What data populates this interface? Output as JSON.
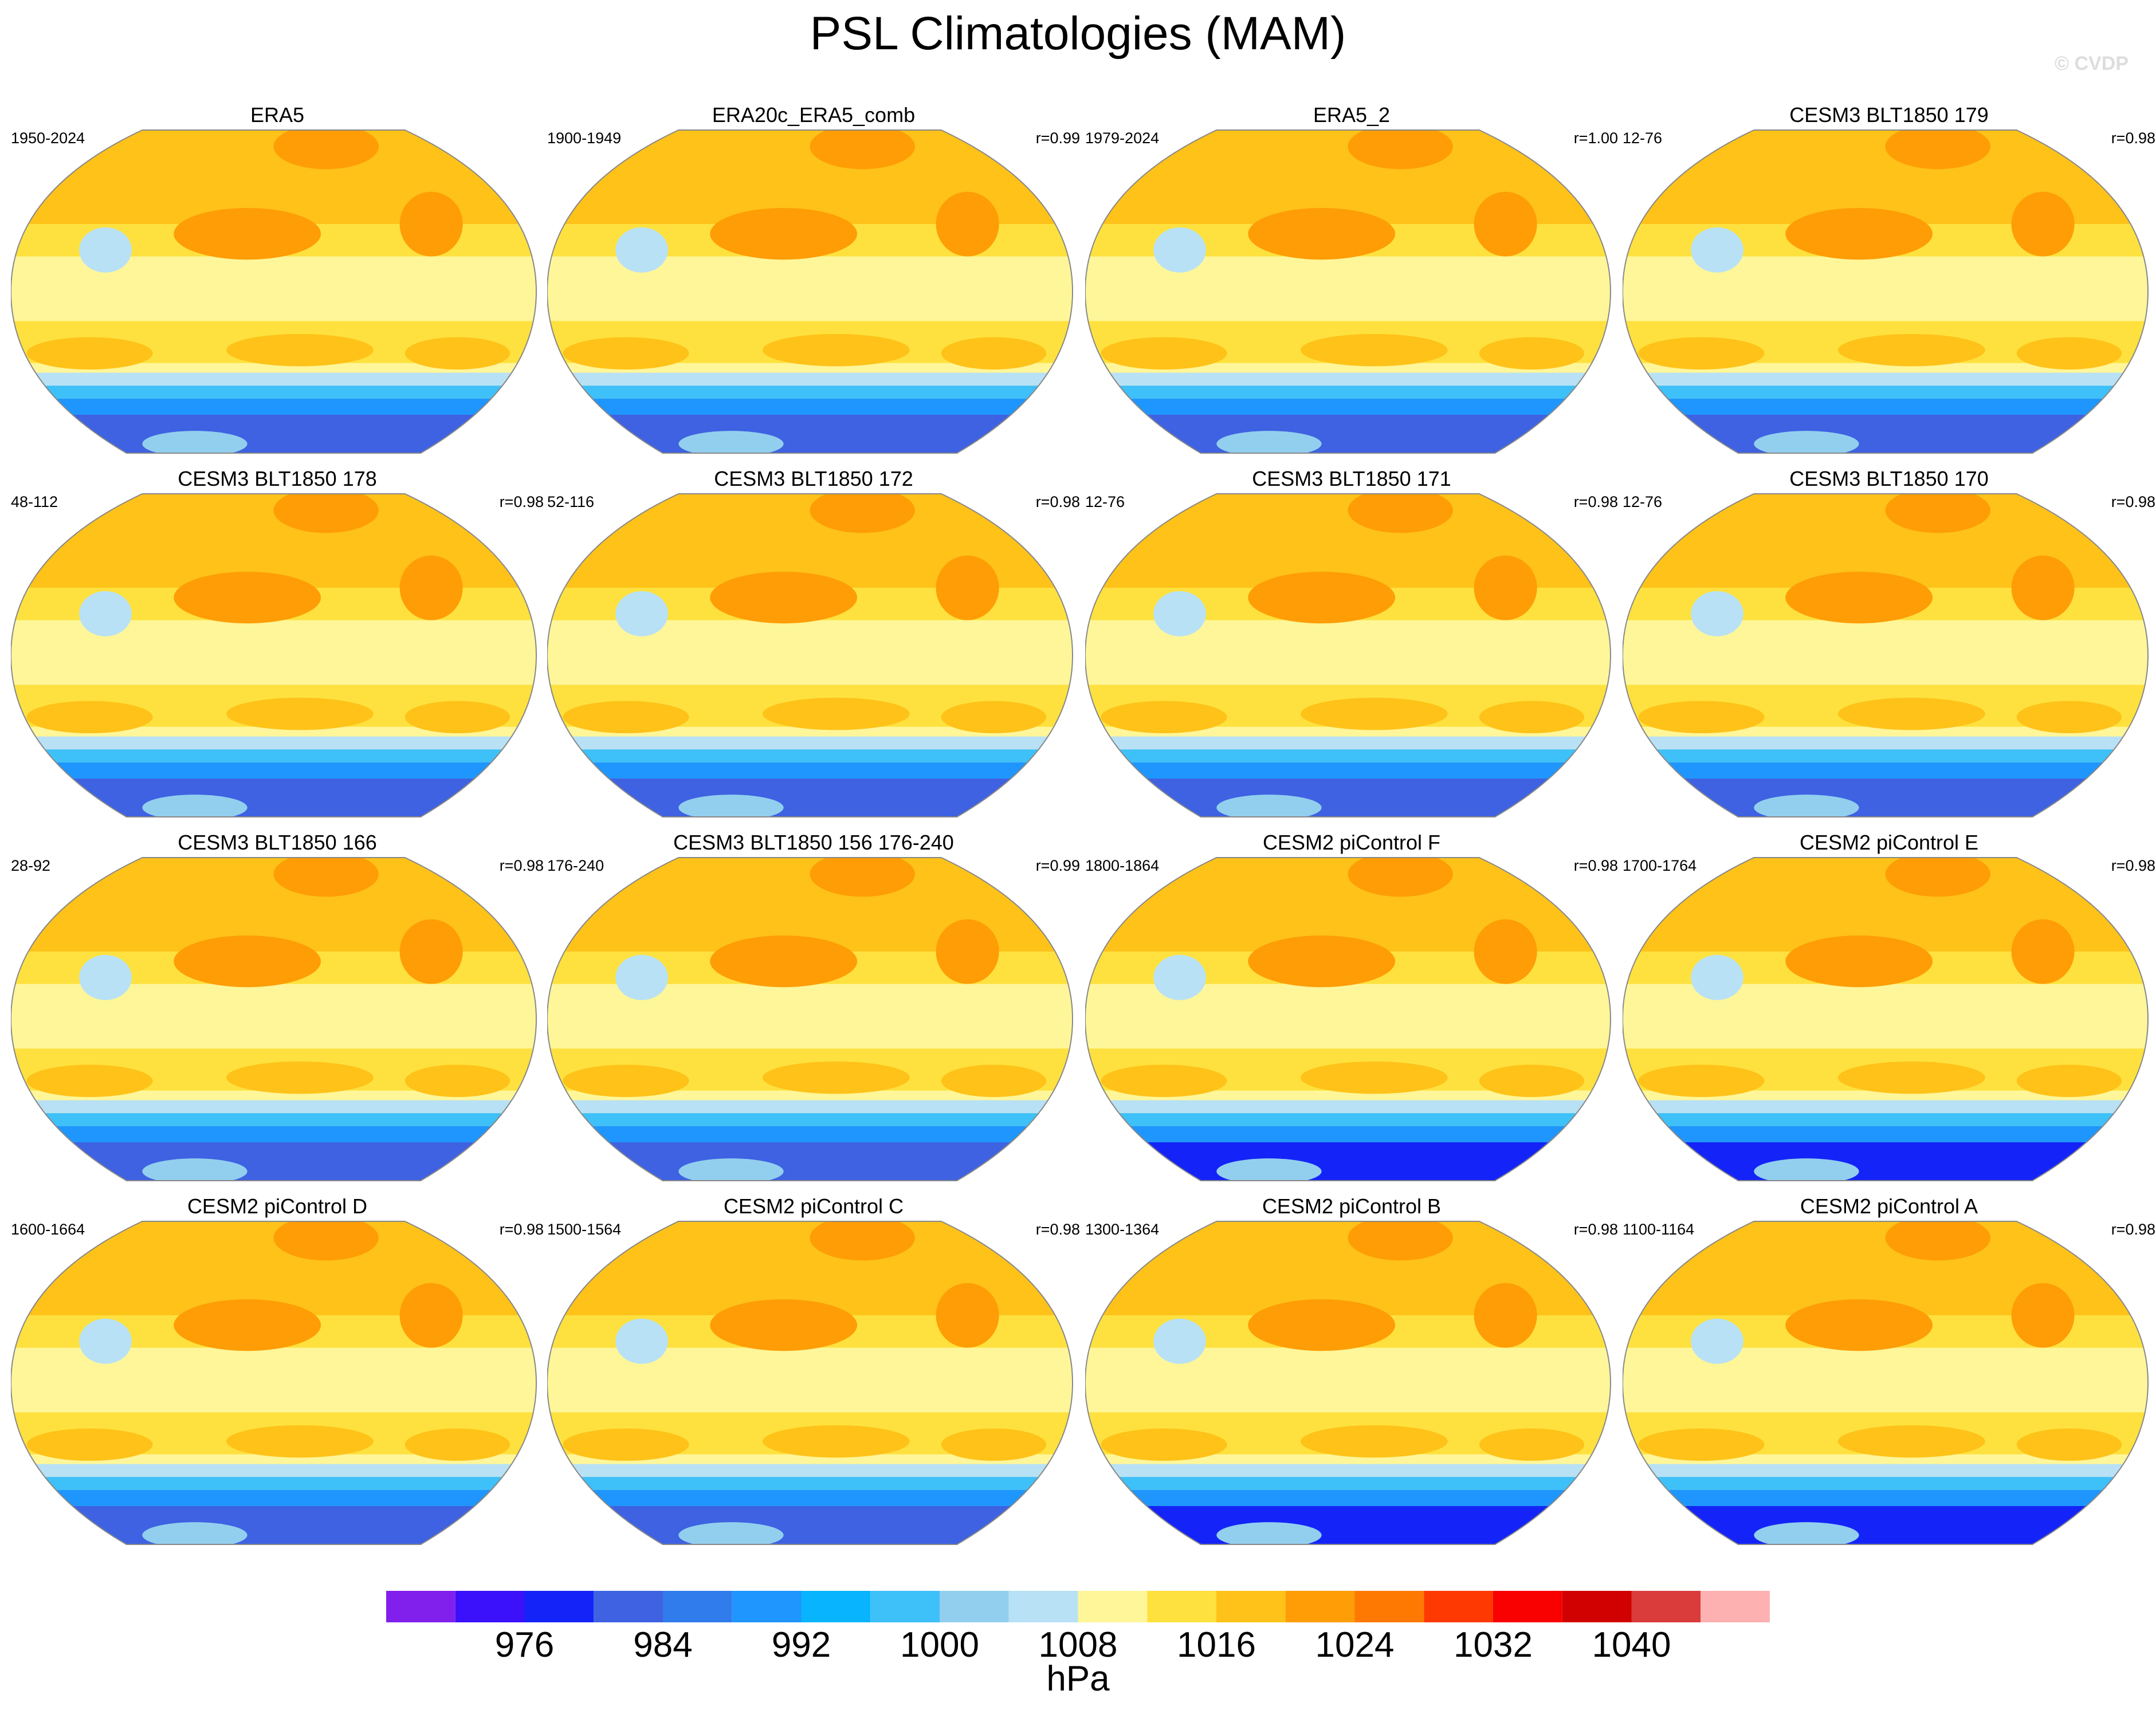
{
  "title": "PSL Climatologies (MAM)",
  "watermark": "© CVDP",
  "chart_data": {
    "type": "heatmap",
    "title": "PSL Climatologies (MAM)",
    "projection": "Robinson global map",
    "units": "hPa",
    "colorbar": {
      "levels": [
        968,
        972,
        976,
        980,
        984,
        988,
        992,
        996,
        1000,
        1004,
        1008,
        1012,
        1016,
        1020,
        1024,
        1028,
        1032,
        1036,
        1040,
        1044
      ],
      "tick_labels": [
        "976",
        "984",
        "992",
        "1000",
        "1008",
        "1016",
        "1024",
        "1032",
        "1040"
      ],
      "colors": [
        "#8120ec",
        "#3b10fb",
        "#1424f8",
        "#3e62e2",
        "#307cec",
        "#1e96fe",
        "#08b4fe",
        "#3ec0f9",
        "#92cfee",
        "#b8e1f5",
        "#fef699",
        "#fee13e",
        "#fec219",
        "#fe9d06",
        "#fe7902",
        "#fe3a02",
        "#f90101",
        "#d20101",
        "#da3b3b",
        "#feb1b1"
      ],
      "position": "bottom"
    },
    "panels": [
      {
        "title": "ERA5",
        "years": "1950-2024",
        "r": ""
      },
      {
        "title": "ERA20c_ERA5_comb",
        "years": "1900-1949",
        "r": "r=0.99"
      },
      {
        "title": "ERA5_2",
        "years": "1979-2024",
        "r": "r=1.00"
      },
      {
        "title": "CESM3 BLT1850 179",
        "years": "12-76",
        "r": "r=0.98"
      },
      {
        "title": "CESM3 BLT1850 178",
        "years": "48-112",
        "r": "r=0.98"
      },
      {
        "title": "CESM3 BLT1850 172",
        "years": "52-116",
        "r": "r=0.98"
      },
      {
        "title": "CESM3 BLT1850 171",
        "years": "12-76",
        "r": "r=0.98"
      },
      {
        "title": "CESM3 BLT1850 170",
        "years": "12-76",
        "r": "r=0.98"
      },
      {
        "title": "CESM3 BLT1850 166",
        "years": "28-92",
        "r": "r=0.98"
      },
      {
        "title": "CESM3 BLT1850 156 176-240",
        "years": "176-240",
        "r": "r=0.99"
      },
      {
        "title": "CESM2 piControl F",
        "years": "1800-1864",
        "r": "r=0.98"
      },
      {
        "title": "CESM2 piControl E",
        "years": "1700-1764",
        "r": "r=0.98"
      },
      {
        "title": "CESM2 piControl D",
        "years": "1600-1664",
        "r": "r=0.98"
      },
      {
        "title": "CESM2 piControl C",
        "years": "1500-1564",
        "r": "r=0.98"
      },
      {
        "title": "CESM2 piControl B",
        "years": "1300-1364",
        "r": "r=0.98"
      },
      {
        "title": "CESM2 piControl A",
        "years": "1100-1164",
        "r": "r=0.98"
      }
    ]
  }
}
